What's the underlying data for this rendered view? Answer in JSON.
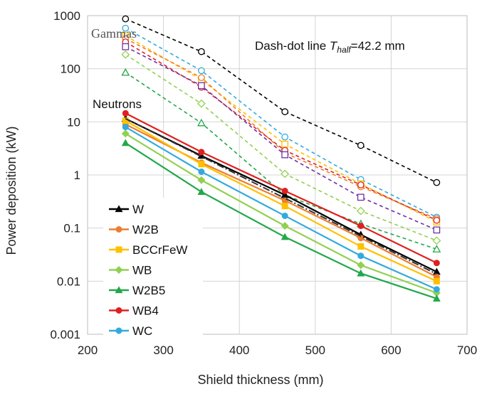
{
  "chart_data": {
    "type": "line",
    "xlabel": "Shield thickness (mm)",
    "ylabel": "Power deposition (kW)",
    "xlim": [
      200,
      700
    ],
    "ylim": [
      0.001,
      1000
    ],
    "yscale": "log",
    "grid": true,
    "xticks": [
      "200",
      "300",
      "400",
      "500",
      "600",
      "700"
    ],
    "yticks": [
      "0.001",
      "0.01",
      "0.1",
      "1",
      "10",
      "100",
      "1000"
    ],
    "legend_position": "bottom-left",
    "annotations": {
      "gammas": "Gammas",
      "neutrons": "Neutrons",
      "dashdot_prefix": "Dash-dot line ",
      "dashdot_symbol": "T",
      "dashdot_sub": "half",
      "dashdot_suffix": "=42.2 mm"
    },
    "x": [
      250,
      350,
      460,
      560,
      660
    ],
    "series": [
      {
        "name": "W",
        "group": "neutrons",
        "color": "#000000",
        "marker": "triangle",
        "values": [
          11.5,
          2.3,
          0.42,
          0.075,
          0.015
        ]
      },
      {
        "name": "W2B",
        "group": "neutrons",
        "color": "#ED7D31",
        "marker": "circle",
        "values": [
          9.0,
          1.7,
          0.33,
          0.065,
          0.012
        ]
      },
      {
        "name": "BCCrFeW",
        "group": "neutrons",
        "color": "#FFC000",
        "marker": "square",
        "values": [
          10.5,
          1.6,
          0.26,
          0.045,
          0.01
        ]
      },
      {
        "name": "WB",
        "group": "neutrons",
        "color": "#92D050",
        "marker": "diamond",
        "values": [
          6.0,
          0.8,
          0.11,
          0.02,
          0.006
        ]
      },
      {
        "name": "W2B5",
        "group": "neutrons",
        "color": "#22A84A",
        "marker": "triangle",
        "values": [
          4.0,
          0.48,
          0.068,
          0.014,
          0.0047
        ]
      },
      {
        "name": "WB4",
        "group": "neutrons",
        "color": "#E02020",
        "marker": "circle",
        "values": [
          14.5,
          2.7,
          0.5,
          0.11,
          0.022
        ]
      },
      {
        "name": "WC",
        "group": "neutrons",
        "color": "#33AADD",
        "marker": "circle",
        "values": [
          8.0,
          1.15,
          0.17,
          0.03,
          0.007
        ]
      },
      {
        "name": "",
        "group": "gammas",
        "color": "#000000",
        "marker": "circle-open",
        "values": [
          870,
          210,
          15.5,
          3.6,
          0.72
        ]
      },
      {
        "name": "",
        "group": "gammas",
        "color": "#33AADD",
        "marker": "circle-open",
        "values": [
          580,
          92,
          5.2,
          0.82,
          0.16
        ]
      },
      {
        "name": "",
        "group": "gammas",
        "color": "#FFC000",
        "marker": "square-open",
        "values": [
          420,
          62,
          3.8,
          0.68,
          0.13
        ]
      },
      {
        "name": "",
        "group": "gammas",
        "color": "#ED7D31",
        "marker": "circle-open",
        "values": [
          370,
          68,
          2.6,
          0.6,
          0.15
        ]
      },
      {
        "name": "",
        "group": "gammas",
        "color": "#E02020",
        "marker": "circle-open",
        "values": [
          320,
          45,
          2.9,
          0.65,
          0.14
        ]
      },
      {
        "name": "",
        "group": "gammas",
        "color": "#7030A0",
        "marker": "square-open",
        "values": [
          260,
          48,
          2.4,
          0.38,
          0.092
        ]
      },
      {
        "name": "",
        "group": "gammas",
        "color": "#92D050",
        "marker": "diamond-open",
        "values": [
          185,
          22,
          1.05,
          0.21,
          0.058
        ]
      },
      {
        "name": "",
        "group": "gammas",
        "color": "#22A84A",
        "marker": "triangle-open",
        "values": [
          85,
          9.5,
          0.42,
          0.12,
          0.04
        ]
      }
    ],
    "dashdot_fit": {
      "color": "#333333",
      "x": [
        250,
        660
      ],
      "values": [
        11.5,
        0.0136
      ]
    }
  }
}
